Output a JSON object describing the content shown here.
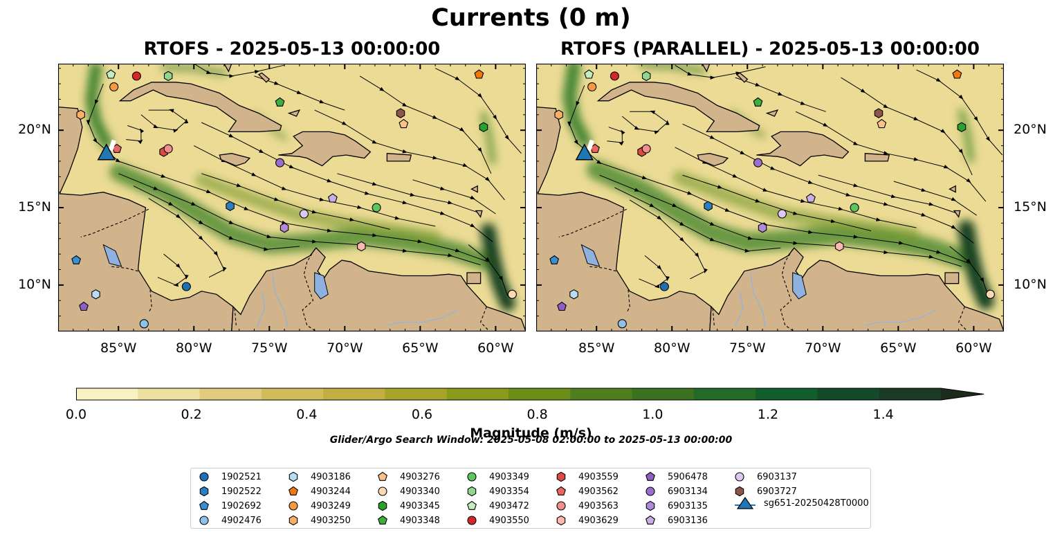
{
  "figure": {
    "title": "Currents (0 m)",
    "search_window": "Glider/Argo Search Window: 2025-05-08 02:00:00 to 2025-05-13 00:00:00"
  },
  "panels": [
    {
      "title": "RTOFS - 2025-05-13 00:00:00"
    },
    {
      "title": "RTOFS (PARALLEL) - 2025-05-13 00:00:00"
    }
  ],
  "map_extent": {
    "lon": [
      -89,
      -58
    ],
    "lat": [
      7,
      24.3
    ]
  },
  "lon_ticks": [
    "85°W",
    "80°W",
    "75°W",
    "70°W",
    "65°W",
    "60°W"
  ],
  "lat_ticks": [
    "20°N",
    "15°N",
    "10°N"
  ],
  "colors": {
    "land": "#d2b48c",
    "lake": "#8fb1e0",
    "ocean_low": "#efe0a0",
    "ocean_high": "#1a3a1a"
  },
  "colorbar": {
    "label": "Magnitude (m/s)",
    "ticks": [
      "0.0",
      "0.2",
      "0.4",
      "0.6",
      "0.8",
      "1.0",
      "1.2",
      "1.4"
    ],
    "range": [
      0.0,
      1.5
    ],
    "extend": "max",
    "colors": [
      "#f8f1c0",
      "#ece0a0",
      "#e0cc7c",
      "#d2bc5a",
      "#c4ae44",
      "#a8a42a",
      "#8a9a1c",
      "#6c8e18",
      "#4f7e1e",
      "#3b7222",
      "#226a26",
      "#0f5e2c",
      "#124a2a",
      "#1a3a24",
      "#1c2c1c"
    ]
  },
  "legend": {
    "entries": [
      {
        "label": "1902521",
        "marker": "circle",
        "color": "#1f6fb5"
      },
      {
        "label": "1902522",
        "marker": "hexagon",
        "color": "#2b7fc0"
      },
      {
        "label": "1902692",
        "marker": "pentagon",
        "color": "#3a8fd0"
      },
      {
        "label": "4902476",
        "marker": "circle",
        "color": "#8ec1ea"
      },
      {
        "label": "4903186",
        "marker": "hexagon",
        "color": "#b9dcf5"
      },
      {
        "label": "4903244",
        "marker": "pentagon",
        "color": "#f07a10"
      },
      {
        "label": "4903249",
        "marker": "circle",
        "color": "#f59a40"
      },
      {
        "label": "4903250",
        "marker": "hexagon",
        "color": "#f8b06a"
      },
      {
        "label": "4903276",
        "marker": "pentagon",
        "color": "#fcc08a"
      },
      {
        "label": "4903340",
        "marker": "circle",
        "color": "#fdd9b2"
      },
      {
        "label": "4903345",
        "marker": "hexagon",
        "color": "#2ca02c"
      },
      {
        "label": "4903348",
        "marker": "pentagon",
        "color": "#3daf3d"
      },
      {
        "label": "4903349",
        "marker": "circle",
        "color": "#5ec65e"
      },
      {
        "label": "4903354",
        "marker": "hexagon",
        "color": "#8ed88e"
      },
      {
        "label": "4903472",
        "marker": "pentagon",
        "color": "#c2edc2"
      },
      {
        "label": "4903550",
        "marker": "circle",
        "color": "#d62728"
      },
      {
        "label": "4903559",
        "marker": "hexagon",
        "color": "#dc4a44"
      },
      {
        "label": "4903562",
        "marker": "pentagon",
        "color": "#e86660"
      },
      {
        "label": "4903563",
        "marker": "circle",
        "color": "#f28f8c"
      },
      {
        "label": "4903629",
        "marker": "hexagon",
        "color": "#fbb7b0"
      },
      {
        "label": "5906478",
        "marker": "pentagon",
        "color": "#8e5fc2"
      },
      {
        "label": "6903134",
        "marker": "circle",
        "color": "#9b6dcf"
      },
      {
        "label": "6903135",
        "marker": "hexagon",
        "color": "#b08ad8"
      },
      {
        "label": "6903136",
        "marker": "pentagon",
        "color": "#c8aee6"
      },
      {
        "label": "6903137",
        "marker": "circle",
        "color": "#dcc8f2"
      },
      {
        "label": "6903727",
        "marker": "hexagon",
        "color": "#8c564b"
      },
      {
        "label": "sg651-20250428T0000",
        "marker": "triangle",
        "color": "#1f77b4"
      }
    ]
  },
  "glider_track": {
    "label": "sg651-20250428T0000",
    "lon": -85.8,
    "lat": 18.5
  },
  "floats": [
    {
      "id": "1902521",
      "lon": -80.5,
      "lat": 9.9
    },
    {
      "id": "1902522",
      "lon": -77.6,
      "lat": 15.1
    },
    {
      "id": "1902692",
      "lon": -87.8,
      "lat": 11.6
    },
    {
      "id": "4902476",
      "lon": -83.3,
      "lat": 7.5
    },
    {
      "id": "4903186",
      "lon": -86.5,
      "lat": 9.4
    },
    {
      "id": "4903244",
      "lon": -61.1,
      "lat": 23.6
    },
    {
      "id": "4903249",
      "lon": -85.3,
      "lat": 22.8
    },
    {
      "id": "4903250",
      "lon": -87.5,
      "lat": 21.0
    },
    {
      "id": "4903276",
      "lon": -66.1,
      "lat": 20.4
    },
    {
      "id": "4903340",
      "lon": -58.9,
      "lat": 9.4
    },
    {
      "id": "4903345",
      "lon": -60.8,
      "lat": 20.2
    },
    {
      "id": "4903348",
      "lon": -74.3,
      "lat": 21.8
    },
    {
      "id": "4903349",
      "lon": -67.9,
      "lat": 15.0
    },
    {
      "id": "4903354",
      "lon": -81.7,
      "lat": 23.5
    },
    {
      "id": "4903472",
      "lon": -85.5,
      "lat": 23.6
    },
    {
      "id": "4903550",
      "lon": -83.8,
      "lat": 23.5
    },
    {
      "id": "4903559",
      "lon": -82.0,
      "lat": 18.6
    },
    {
      "id": "4903562",
      "lon": -85.1,
      "lat": 18.8
    },
    {
      "id": "4903563",
      "lon": -81.7,
      "lat": 18.8
    },
    {
      "id": "4903629",
      "lon": -68.9,
      "lat": 12.5
    },
    {
      "id": "5906478",
      "lon": -87.3,
      "lat": 8.6
    },
    {
      "id": "6903134",
      "lon": -74.3,
      "lat": 17.9
    },
    {
      "id": "6903135",
      "lon": -74.0,
      "lat": 13.7
    },
    {
      "id": "6903136",
      "lon": -70.8,
      "lat": 15.6
    },
    {
      "id": "6903137",
      "lon": -72.7,
      "lat": 14.6
    },
    {
      "id": "6903727",
      "lon": -66.3,
      "lat": 21.1
    }
  ]
}
